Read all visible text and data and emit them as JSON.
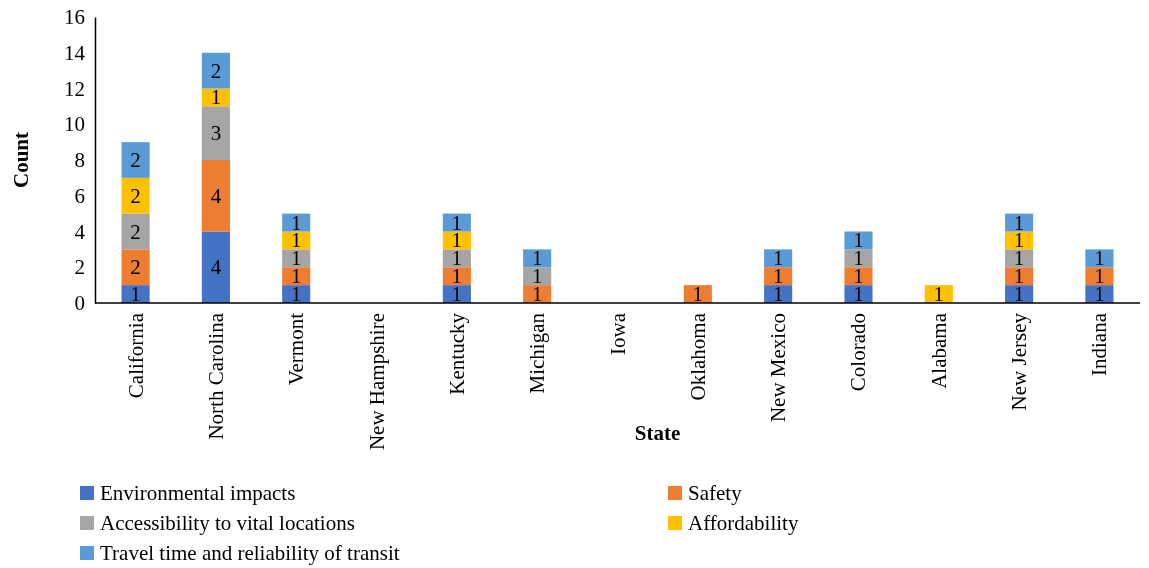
{
  "chart_data": {
    "type": "bar",
    "stacked": true,
    "xlabel": "State",
    "ylabel": "Count",
    "categories": [
      "California",
      "North Carolina",
      "Vermont",
      "New Hampshire",
      "Kentucky",
      "Michigan",
      "Iowa",
      "Oklahoma",
      "New Mexico",
      "Colorado",
      "Alabama",
      "New Jersey",
      "Indiana"
    ],
    "series": [
      {
        "name": "Environmental impacts",
        "color": "#4472c4",
        "values": [
          1,
          4,
          1,
          null,
          1,
          null,
          null,
          null,
          1,
          1,
          null,
          1,
          1
        ]
      },
      {
        "name": "Safety",
        "color": "#ed7d31",
        "values": [
          2,
          4,
          1,
          null,
          1,
          1,
          null,
          1,
          1,
          1,
          null,
          1,
          1
        ]
      },
      {
        "name": "Accessibility to vital locations",
        "color": "#a5a5a5",
        "values": [
          2,
          3,
          1,
          null,
          1,
          1,
          null,
          null,
          null,
          1,
          null,
          1,
          null
        ]
      },
      {
        "name": "Affordability",
        "color": "#ffc000",
        "values": [
          2,
          1,
          1,
          null,
          1,
          null,
          null,
          null,
          null,
          null,
          1,
          1,
          null
        ]
      },
      {
        "name": "Travel time and reliability of transit",
        "color": "#5b9bd5",
        "values": [
          2,
          2,
          1,
          null,
          1,
          1,
          null,
          null,
          1,
          1,
          null,
          1,
          1
        ]
      }
    ],
    "ylim": [
      0,
      16
    ],
    "yticks": [
      0,
      2,
      4,
      6,
      8,
      10,
      12,
      14,
      16
    ],
    "grid": false,
    "legend": "bottom",
    "data_labels": true
  }
}
